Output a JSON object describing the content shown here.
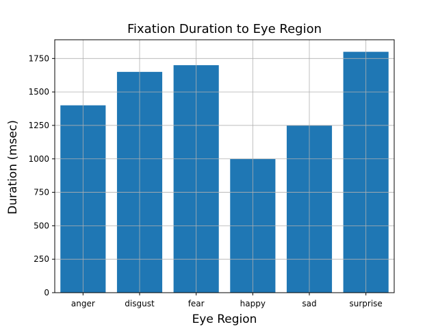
{
  "chart_data": {
    "type": "bar",
    "title": "Fixation Duration to Eye Region",
    "xlabel": "Eye Region",
    "ylabel": "Duration (msec)",
    "categories": [
      "anger",
      "disgust",
      "fear",
      "happy",
      "sad",
      "surprise"
    ],
    "values": [
      1400,
      1650,
      1700,
      1000,
      1250,
      1800
    ],
    "ylim": [
      0,
      1890
    ],
    "yticks": [
      0,
      250,
      500,
      750,
      1000,
      1250,
      1500,
      1750
    ],
    "grid": true,
    "bar_color": "#1f77b4",
    "grid_color": "#b0b0b0"
  }
}
